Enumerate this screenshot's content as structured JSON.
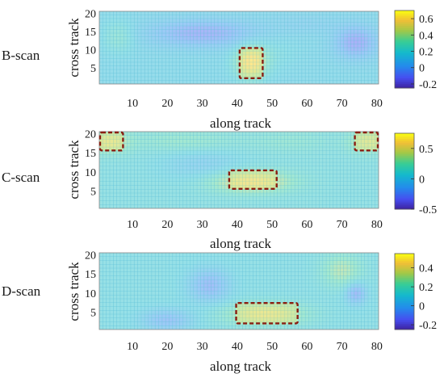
{
  "chart_data": [
    {
      "type": "heatmap",
      "scan_label": "B-scan",
      "xlabel": "along track",
      "ylabel": "cross track",
      "xlim": [
        1,
        80
      ],
      "ylim": [
        1,
        20
      ],
      "x_ticks": [
        "10",
        "20",
        "30",
        "40",
        "50",
        "60",
        "70",
        "80"
      ],
      "y_ticks": [
        "5",
        "10",
        "15",
        "20"
      ],
      "colorbar": {
        "ticks": [
          "0.6",
          "0.4",
          "0.2",
          "0",
          "-0.2"
        ],
        "tick_values": [
          0.6,
          0.4,
          0.2,
          0,
          -0.2
        ],
        "range": [
          -0.25,
          0.7
        ]
      },
      "background": 0.15,
      "blobs": [
        {
          "x": 44,
          "y": 6.5,
          "sx": 3,
          "sy": 3,
          "v": 0.6
        },
        {
          "x": 50,
          "y": 9,
          "sx": 5,
          "sy": 3,
          "v": 0.2
        },
        {
          "x": 30,
          "y": 14.5,
          "sx": 10,
          "sy": 2.5,
          "v": -0.1
        },
        {
          "x": 6,
          "y": 13.5,
          "sx": 3,
          "sy": 3,
          "v": 0.27
        },
        {
          "x": 74,
          "y": 12,
          "sx": 4,
          "sy": 3,
          "v": -0.12
        },
        {
          "x": 60,
          "y": 17,
          "sx": 8,
          "sy": 2,
          "v": 0.1
        }
      ],
      "highlight_boxes": [
        {
          "x": [
            41,
            47
          ],
          "y": [
            2.5,
            10
          ]
        }
      ]
    },
    {
      "type": "heatmap",
      "scan_label": "C-scan",
      "xlabel": "along track",
      "ylabel": "cross track",
      "xlim": [
        1,
        80
      ],
      "ylim": [
        1,
        20
      ],
      "x_ticks": [
        "10",
        "20",
        "30",
        "40",
        "50",
        "60",
        "70",
        "80"
      ],
      "y_ticks": [
        "5",
        "10",
        "15",
        "20"
      ],
      "colorbar": {
        "ticks": [
          "0.5",
          "0",
          "-0.5"
        ],
        "tick_values": [
          0.5,
          0,
          -0.5
        ],
        "range": [
          -0.5,
          0.75
        ]
      },
      "background": 0.1,
      "blobs": [
        {
          "x": 44,
          "y": 7.5,
          "sx": 8,
          "sy": 2,
          "v": 0.55
        },
        {
          "x": 3.5,
          "y": 17.8,
          "sx": 4,
          "sy": 2,
          "v": 0.45
        },
        {
          "x": 77.5,
          "y": 17.8,
          "sx": 4,
          "sy": 2,
          "v": 0.4
        },
        {
          "x": 25,
          "y": 18,
          "sx": 10,
          "sy": 2,
          "v": 0.25
        },
        {
          "x": 55,
          "y": 18,
          "sx": 8,
          "sy": 2,
          "v": 0.2
        },
        {
          "x": 30,
          "y": 12,
          "sx": 8,
          "sy": 3,
          "v": -0.05
        }
      ],
      "highlight_boxes": [
        {
          "x": [
            1,
            7
          ],
          "y": [
            16,
            20
          ]
        },
        {
          "x": [
            74,
            80
          ],
          "y": [
            16,
            20
          ]
        },
        {
          "x": [
            38,
            51
          ],
          "y": [
            6,
            10
          ]
        }
      ]
    },
    {
      "type": "heatmap",
      "scan_label": "D-scan",
      "xlabel": "along track",
      "ylabel": "cross track",
      "xlim": [
        1,
        80
      ],
      "ylim": [
        1,
        20
      ],
      "x_ticks": [
        "10",
        "20",
        "30",
        "40",
        "50",
        "60",
        "70",
        "80"
      ],
      "y_ticks": [
        "5",
        "10",
        "15",
        "20"
      ],
      "colorbar": {
        "ticks": [
          "0.4",
          "0.2",
          "0",
          "-0.2"
        ],
        "tick_values": [
          0.4,
          0.2,
          0,
          -0.2
        ],
        "range": [
          -0.25,
          0.55
        ]
      },
      "background": 0.12,
      "blobs": [
        {
          "x": 48,
          "y": 4.5,
          "sx": 8,
          "sy": 2,
          "v": 0.38
        },
        {
          "x": 70,
          "y": 16,
          "sx": 4,
          "sy": 3,
          "v": 0.3
        },
        {
          "x": 20,
          "y": 3,
          "sx": 5,
          "sy": 2,
          "v": -0.05
        },
        {
          "x": 32,
          "y": 12,
          "sx": 4,
          "sy": 3,
          "v": -0.08
        },
        {
          "x": 74,
          "y": 10,
          "sx": 2,
          "sy": 2,
          "v": -0.1
        }
      ],
      "highlight_boxes": [
        {
          "x": [
            40,
            57
          ],
          "y": [
            2.5,
            7
          ]
        }
      ]
    }
  ]
}
